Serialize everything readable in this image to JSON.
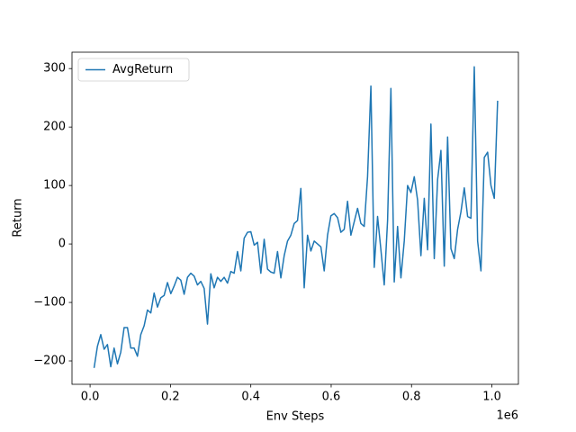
{
  "chart_data": {
    "type": "line",
    "x": [
      0.01,
      0.0183,
      0.0266,
      0.0349,
      0.0432,
      0.0515,
      0.0598,
      0.0681,
      0.0764,
      0.0847,
      0.093,
      0.1013,
      0.1096,
      0.1179,
      0.1262,
      0.1345,
      0.1428,
      0.1511,
      0.1594,
      0.1677,
      0.176,
      0.1843,
      0.1926,
      0.2009,
      0.2092,
      0.2175,
      0.2258,
      0.2341,
      0.2424,
      0.2507,
      0.259,
      0.2673,
      0.2756,
      0.2839,
      0.2922,
      0.3005,
      0.3088,
      0.3171,
      0.3254,
      0.3337,
      0.342,
      0.3503,
      0.3586,
      0.3669,
      0.3752,
      0.3835,
      0.3918,
      0.4001,
      0.4084,
      0.4167,
      0.425,
      0.4333,
      0.4416,
      0.4499,
      0.4582,
      0.4665,
      0.4748,
      0.4831,
      0.4914,
      0.4997,
      0.508,
      0.5163,
      0.5246,
      0.5329,
      0.5412,
      0.5495,
      0.5578,
      0.5661,
      0.5744,
      0.5827,
      0.591,
      0.5993,
      0.6076,
      0.6159,
      0.6242,
      0.6325,
      0.6408,
      0.6491,
      0.6574,
      0.6657,
      0.674,
      0.6823,
      0.6906,
      0.6989,
      0.7072,
      0.7155,
      0.7238,
      0.7321,
      0.7404,
      0.7487,
      0.757,
      0.7653,
      0.7736,
      0.7819,
      0.7902,
      0.7985,
      0.8068,
      0.8151,
      0.8234,
      0.8317,
      0.84,
      0.8483,
      0.8566,
      0.8649,
      0.8732,
      0.8815,
      0.8898,
      0.8981,
      0.9064,
      0.9147,
      0.923,
      0.9313,
      0.9396,
      0.9479,
      0.9562,
      0.9645,
      0.9728,
      0.9811,
      0.9894,
      0.9977,
      1.006,
      1.0143
    ],
    "series": [
      {
        "name": "AvgReturn",
        "color": "#1f77b4",
        "values": [
          -212,
          -175,
          -155,
          -180,
          -172,
          -210,
          -178,
          -205,
          -185,
          -143,
          -143,
          -178,
          -178,
          -192,
          -155,
          -140,
          -113,
          -118,
          -84,
          -108,
          -92,
          -88,
          -66,
          -85,
          -72,
          -57,
          -62,
          -86,
          -57,
          -50,
          -55,
          -70,
          -64,
          -76,
          -137,
          -51,
          -75,
          -57,
          -64,
          -57,
          -67,
          -47,
          -50,
          -13,
          -46,
          10,
          20,
          21,
          -2,
          3,
          -50,
          8,
          -43,
          -48,
          -50,
          -13,
          -58,
          -20,
          5,
          15,
          35,
          40,
          95,
          -75,
          15,
          -12,
          5,
          0,
          -5,
          -46,
          15,
          48,
          52,
          45,
          20,
          25,
          73,
          15,
          38,
          61,
          35,
          30,
          115,
          270,
          -40,
          47,
          -10,
          -70,
          40,
          266,
          -65,
          30,
          -58,
          5,
          100,
          88,
          115,
          75,
          -20,
          78,
          -10,
          205,
          -25,
          110,
          160,
          -38,
          183,
          -8,
          -25,
          25,
          55,
          96,
          47,
          44,
          303,
          5,
          -46,
          148,
          157,
          100,
          78,
          245
        ]
      }
    ],
    "x_label": "Env Steps",
    "y_label": "Return",
    "x_offset_text": "1e6",
    "xlim": [
      -0.045,
      1.066
    ],
    "ylim": [
      -240,
      328
    ],
    "xticks": [
      {
        "value": 0,
        "label": "0.0"
      },
      0.2,
      0.4,
      0.6,
      0.8,
      {
        "value": 1,
        "label": "1.0"
      }
    ],
    "yticks": [
      {
        "value": -200,
        "label": "−200"
      },
      {
        "value": -100,
        "label": "−100"
      },
      0,
      100,
      200,
      300
    ],
    "legend": "upper left"
  }
}
